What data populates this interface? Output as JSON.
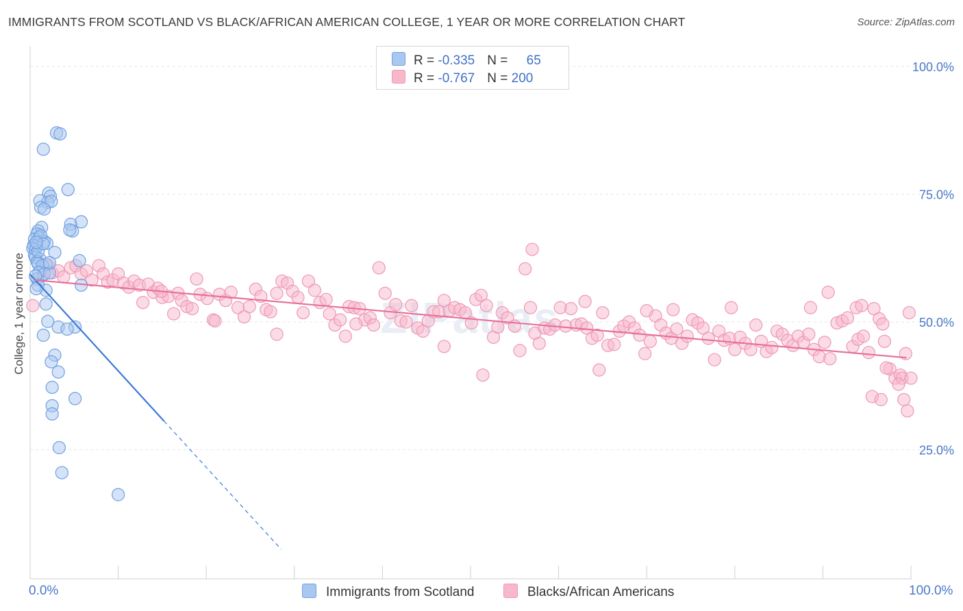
{
  "title": "IMMIGRANTS FROM SCOTLAND VS BLACK/AFRICAN AMERICAN COLLEGE, 1 YEAR OR MORE CORRELATION CHART",
  "source": "Source: ZipAtlas.com",
  "watermark": "ZIPatlas",
  "colors": {
    "blue_fill": "#a9c8f0",
    "blue_stroke": "#6f9fe0",
    "blue_line": "#3a78d8",
    "pink_fill": "#f7b8cc",
    "pink_stroke": "#ee98b4",
    "pink_line": "#e8709a",
    "grid": "#e6e6e6",
    "tick_text": "#4a78c8"
  },
  "legend": {
    "rows": [
      {
        "r_label": "R = ",
        "r_value": "-0.335",
        "n_label": "N = ",
        "n_value": "65"
      },
      {
        "r_label": "R = ",
        "r_value": "-0.767",
        "n_label": "N = ",
        "n_value": "200"
      }
    ]
  },
  "bottom_legend": [
    "Immigrants from Scotland",
    "Blacks/African Americans"
  ],
  "x_axis": {
    "min_label": "0.0%",
    "max_label": "100.0%"
  },
  "chart_data": {
    "type": "scatter",
    "ylabel": "College, 1 year or more",
    "xlim": [
      0,
      100
    ],
    "ylim": [
      0,
      100
    ],
    "y_ticks": [
      {
        "value": 100,
        "label": "100.0%"
      },
      {
        "value": 75,
        "label": "75.0%"
      },
      {
        "value": 50,
        "label": "50.0%"
      },
      {
        "value": 25,
        "label": "25.0%"
      }
    ],
    "grid": "horizontal dashed",
    "series": [
      {
        "name": "Immigrants from Scotland",
        "color": "blue",
        "trend": {
          "x0": 0,
          "y0": 59.3,
          "x1": 15.2,
          "y1": 30.6,
          "dash_to_x": 28.5,
          "dash_to_y": 5.5
        },
        "points": [
          [
            3.0,
            87.0
          ],
          [
            3.4,
            86.8
          ],
          [
            1.5,
            83.8
          ],
          [
            4.3,
            75.9
          ],
          [
            2.1,
            75.2
          ],
          [
            2.3,
            74.6
          ],
          [
            1.1,
            73.7
          ],
          [
            2.0,
            73.4
          ],
          [
            2.4,
            73.6
          ],
          [
            1.2,
            72.4
          ],
          [
            1.6,
            72.1
          ],
          [
            5.8,
            69.6
          ],
          [
            4.6,
            69.1
          ],
          [
            1.3,
            68.5
          ],
          [
            0.9,
            67.8
          ],
          [
            4.8,
            67.8
          ],
          [
            4.5,
            68.0
          ],
          [
            0.8,
            67.2
          ],
          [
            1.0,
            66.5
          ],
          [
            0.5,
            66.2
          ],
          [
            1.6,
            65.8
          ],
          [
            1.9,
            65.4
          ],
          [
            0.4,
            65.0
          ],
          [
            0.7,
            64.9
          ],
          [
            0.3,
            64.4
          ],
          [
            0.6,
            64.2
          ],
          [
            2.8,
            63.6
          ],
          [
            0.5,
            63.1
          ],
          [
            0.6,
            62.6
          ],
          [
            1.1,
            62.3
          ],
          [
            5.6,
            62.0
          ],
          [
            0.8,
            61.8
          ],
          [
            1.8,
            61.2
          ],
          [
            0.9,
            61.4
          ],
          [
            1.4,
            61.0
          ],
          [
            1.0,
            59.7
          ],
          [
            1.6,
            59.4
          ],
          [
            2.2,
            59.6
          ],
          [
            0.8,
            58.4
          ],
          [
            0.9,
            57.2
          ],
          [
            1.8,
            56.2
          ],
          [
            0.7,
            56.5
          ],
          [
            5.8,
            57.2
          ],
          [
            1.8,
            53.5
          ],
          [
            3.2,
            49.0
          ],
          [
            5.1,
            49.0
          ],
          [
            2.0,
            50.1
          ],
          [
            4.2,
            48.6
          ],
          [
            1.5,
            47.4
          ],
          [
            2.8,
            43.5
          ],
          [
            2.4,
            42.2
          ],
          [
            3.2,
            40.2
          ],
          [
            5.1,
            35.0
          ],
          [
            2.5,
            37.2
          ],
          [
            2.5,
            33.6
          ],
          [
            2.5,
            32.0
          ],
          [
            3.3,
            25.4
          ],
          [
            3.6,
            20.5
          ],
          [
            10.0,
            16.2
          ],
          [
            1.2,
            66.9
          ],
          [
            0.9,
            63.8
          ],
          [
            1.5,
            65.3
          ],
          [
            0.6,
            59.0
          ],
          [
            2.2,
            61.6
          ],
          [
            0.7,
            65.6
          ]
        ]
      },
      {
        "name": "Blacks/African Americans",
        "color": "pink",
        "trend": {
          "x0": 0.5,
          "y0": 58.2,
          "x1": 99.5,
          "y1": 43.0
        },
        "points": [
          [
            0.3,
            53.2
          ],
          [
            1.4,
            59.0
          ],
          [
            2.0,
            61.2
          ],
          [
            2.5,
            59.6
          ],
          [
            3.2,
            60.0
          ],
          [
            3.8,
            58.8
          ],
          [
            4.6,
            60.6
          ],
          [
            5.2,
            61.0
          ],
          [
            5.8,
            59.4
          ],
          [
            6.4,
            60.0
          ],
          [
            7.0,
            58.2
          ],
          [
            7.8,
            61.0
          ],
          [
            8.3,
            59.4
          ],
          [
            8.8,
            57.8
          ],
          [
            9.4,
            58.2
          ],
          [
            10.0,
            59.4
          ],
          [
            10.6,
            57.6
          ],
          [
            11.2,
            56.8
          ],
          [
            11.8,
            58.0
          ],
          [
            12.4,
            57.2
          ],
          [
            12.8,
            53.8
          ],
          [
            13.4,
            57.4
          ],
          [
            14.0,
            55.8
          ],
          [
            14.5,
            56.6
          ],
          [
            15.0,
            54.8
          ],
          [
            15.7,
            55.0
          ],
          [
            16.3,
            51.6
          ],
          [
            16.8,
            55.6
          ],
          [
            17.2,
            54.2
          ],
          [
            17.8,
            53.0
          ],
          [
            18.4,
            52.6
          ],
          [
            18.9,
            58.4
          ],
          [
            19.3,
            55.4
          ],
          [
            20.1,
            54.6
          ],
          [
            20.8,
            50.4
          ],
          [
            21.5,
            55.4
          ],
          [
            22.2,
            54.2
          ],
          [
            22.8,
            55.8
          ],
          [
            23.6,
            52.8
          ],
          [
            24.3,
            51.0
          ],
          [
            24.9,
            53.0
          ],
          [
            25.6,
            56.4
          ],
          [
            26.2,
            55.0
          ],
          [
            26.8,
            52.4
          ],
          [
            27.3,
            52.0
          ],
          [
            28.0,
            55.6
          ],
          [
            28.6,
            58.0
          ],
          [
            29.2,
            57.6
          ],
          [
            29.8,
            56.0
          ],
          [
            30.4,
            54.8
          ],
          [
            31.0,
            51.8
          ],
          [
            31.6,
            58.0
          ],
          [
            32.3,
            56.2
          ],
          [
            32.9,
            53.8
          ],
          [
            33.6,
            54.4
          ],
          [
            34.0,
            51.6
          ],
          [
            34.6,
            49.4
          ],
          [
            35.2,
            50.4
          ],
          [
            35.8,
            47.2
          ],
          [
            36.2,
            53.0
          ],
          [
            36.8,
            52.8
          ],
          [
            37.4,
            52.6
          ],
          [
            38.0,
            50.4
          ],
          [
            38.6,
            50.8
          ],
          [
            39.0,
            49.4
          ],
          [
            39.6,
            60.6
          ],
          [
            40.3,
            55.6
          ],
          [
            40.9,
            51.8
          ],
          [
            41.5,
            53.4
          ],
          [
            42.1,
            50.2
          ],
          [
            42.7,
            50.0
          ],
          [
            43.3,
            53.2
          ],
          [
            44.0,
            48.8
          ],
          [
            44.6,
            48.2
          ],
          [
            45.2,
            50.2
          ],
          [
            45.8,
            52.0
          ],
          [
            46.4,
            52.0
          ],
          [
            47.0,
            54.2
          ],
          [
            47.6,
            52.2
          ],
          [
            48.2,
            52.8
          ],
          [
            48.8,
            52.4
          ],
          [
            49.4,
            51.8
          ],
          [
            50.1,
            49.8
          ],
          [
            50.6,
            54.4
          ],
          [
            51.2,
            55.2
          ],
          [
            51.8,
            53.2
          ],
          [
            52.6,
            47.0
          ],
          [
            53.1,
            49.0
          ],
          [
            53.6,
            51.8
          ],
          [
            54.2,
            50.8
          ],
          [
            55.0,
            49.2
          ],
          [
            55.6,
            44.4
          ],
          [
            56.2,
            60.4
          ],
          [
            56.8,
            52.8
          ],
          [
            57.3,
            47.8
          ],
          [
            57.8,
            45.8
          ],
          [
            58.4,
            48.8
          ],
          [
            59.0,
            48.6
          ],
          [
            59.6,
            49.4
          ],
          [
            60.2,
            52.8
          ],
          [
            60.8,
            49.2
          ],
          [
            61.4,
            52.6
          ],
          [
            62.0,
            49.4
          ],
          [
            62.6,
            49.6
          ],
          [
            63.2,
            48.8
          ],
          [
            63.8,
            46.8
          ],
          [
            64.4,
            47.4
          ],
          [
            65.0,
            51.8
          ],
          [
            65.6,
            45.4
          ],
          [
            66.3,
            45.6
          ],
          [
            66.9,
            48.2
          ],
          [
            67.4,
            49.2
          ],
          [
            68.0,
            50.0
          ],
          [
            68.6,
            48.8
          ],
          [
            69.2,
            47.4
          ],
          [
            69.8,
            43.8
          ],
          [
            70.4,
            46.2
          ],
          [
            71.0,
            51.2
          ],
          [
            71.6,
            49.4
          ],
          [
            72.2,
            47.8
          ],
          [
            72.8,
            46.8
          ],
          [
            73.4,
            48.6
          ],
          [
            74.0,
            45.8
          ],
          [
            74.6,
            47.2
          ],
          [
            75.2,
            50.4
          ],
          [
            75.8,
            49.8
          ],
          [
            76.4,
            48.8
          ],
          [
            77.0,
            46.8
          ],
          [
            77.7,
            42.6
          ],
          [
            78.2,
            48.2
          ],
          [
            78.8,
            46.4
          ],
          [
            79.4,
            46.8
          ],
          [
            80.0,
            44.6
          ],
          [
            80.6,
            47.0
          ],
          [
            81.2,
            45.8
          ],
          [
            81.8,
            44.6
          ],
          [
            82.4,
            49.4
          ],
          [
            83.0,
            46.2
          ],
          [
            83.6,
            44.2
          ],
          [
            84.2,
            45.0
          ],
          [
            84.8,
            48.2
          ],
          [
            85.4,
            47.6
          ],
          [
            86.0,
            46.4
          ],
          [
            86.6,
            45.4
          ],
          [
            87.2,
            47.2
          ],
          [
            87.8,
            46.0
          ],
          [
            88.4,
            47.6
          ],
          [
            89.0,
            44.6
          ],
          [
            89.6,
            43.2
          ],
          [
            90.2,
            46.0
          ],
          [
            90.8,
            42.8
          ],
          [
            91.6,
            49.8
          ],
          [
            92.2,
            50.2
          ],
          [
            92.8,
            50.8
          ],
          [
            93.4,
            45.2
          ],
          [
            94.0,
            46.6
          ],
          [
            94.6,
            47.2
          ],
          [
            95.2,
            44.0
          ],
          [
            95.8,
            52.6
          ],
          [
            96.4,
            50.6
          ],
          [
            97.0,
            46.2
          ],
          [
            97.6,
            40.8
          ],
          [
            98.2,
            39.0
          ],
          [
            98.8,
            39.6
          ],
          [
            99.4,
            43.8
          ],
          [
            99.8,
            51.8
          ],
          [
            14.9,
            56.0
          ],
          [
            21.0,
            50.2
          ],
          [
            28.0,
            47.6
          ],
          [
            37.0,
            49.6
          ],
          [
            47.0,
            45.2
          ],
          [
            51.4,
            39.6
          ],
          [
            57.0,
            64.2
          ],
          [
            63.0,
            54.0
          ],
          [
            64.6,
            40.6
          ],
          [
            70.0,
            52.2
          ],
          [
            73.0,
            52.4
          ],
          [
            79.6,
            52.8
          ],
          [
            88.6,
            52.8
          ],
          [
            90.6,
            55.8
          ],
          [
            93.8,
            52.8
          ],
          [
            94.4,
            53.2
          ],
          [
            96.8,
            49.6
          ],
          [
            99.0,
            39.0
          ],
          [
            95.6,
            35.4
          ],
          [
            96.6,
            34.8
          ],
          [
            97.2,
            41.0
          ],
          [
            98.6,
            37.8
          ],
          [
            99.2,
            34.8
          ],
          [
            99.6,
            32.6
          ],
          [
            100.0,
            39.0
          ]
        ]
      }
    ]
  }
}
